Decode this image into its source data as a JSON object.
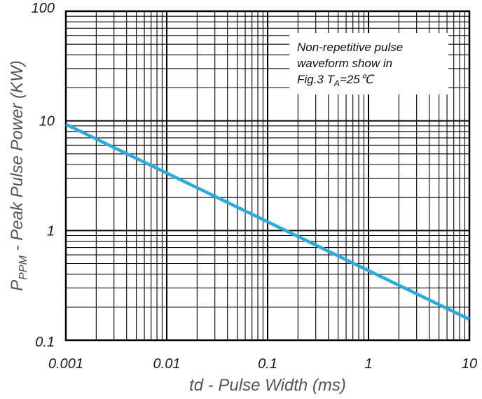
{
  "chart_data": {
    "type": "line",
    "title": "",
    "xlabel": "td - Pulse Width (ms)",
    "ylabel_main": "P",
    "ylabel_sub": "PPM",
    "ylabel_rest": " - Peak Pulse Power  (KW)",
    "xscale": "log",
    "yscale": "log",
    "xlim": [
      0.001,
      10
    ],
    "ylim": [
      0.1,
      100
    ],
    "x_ticks": [
      0.001,
      0.01,
      0.1,
      1,
      10
    ],
    "x_tick_labels": [
      "0.001",
      "0.01",
      "0.1",
      "1",
      "10"
    ],
    "y_ticks": [
      0.1,
      1,
      10,
      100
    ],
    "y_tick_labels": [
      "0.1",
      "1",
      "10",
      "100"
    ],
    "grid": true,
    "series": [
      {
        "color": "#29abe2",
        "x": [
          0.001,
          10
        ],
        "y": [
          9.3,
          0.155
        ]
      }
    ],
    "annotation": {
      "line1": "Non-repetitive pulse",
      "line2": "waveform show in",
      "line3_a": "Fig.3  T",
      "line3_sub": "A",
      "line3_b": "=25℃",
      "placement": "top-right"
    }
  }
}
